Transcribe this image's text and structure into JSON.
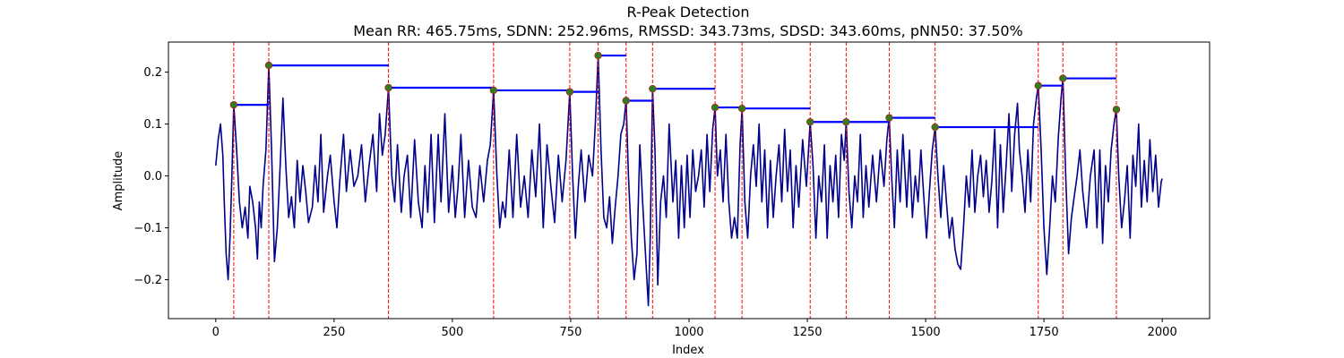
{
  "chart_data": {
    "type": "line",
    "title": "R-Peak Detection",
    "subtitle": "Mean RR: 465.75ms, SDNN: 252.96ms, RMSSD: 343.73ms, SDSD: 343.60ms, pNN50: 37.50%",
    "xlabel": "Index",
    "ylabel": "Amplitude",
    "xlim": [
      -100,
      2100
    ],
    "ylim": [
      -0.275,
      0.258
    ],
    "xticks": [
      0,
      250,
      500,
      750,
      1000,
      1250,
      1500,
      1750,
      2000
    ],
    "xtick_labels": [
      "0",
      "250",
      "500",
      "750",
      "1000",
      "1250",
      "1500",
      "1750",
      "2000"
    ],
    "yticks": [
      -0.2,
      -0.1,
      0.0,
      0.1,
      0.2
    ],
    "ytick_labels": [
      "−0.2",
      "−0.1",
      "0.0",
      "0.1",
      "0.2"
    ],
    "grid": false,
    "signal": {
      "color": "#00008b",
      "points": [
        [
          0,
          0.02
        ],
        [
          5,
          0.07
        ],
        [
          10,
          0.1
        ],
        [
          15,
          0.04
        ],
        [
          18,
          -0.05
        ],
        [
          22,
          -0.15
        ],
        [
          26,
          -0.2
        ],
        [
          30,
          -0.12
        ],
        [
          34,
          0.0
        ],
        [
          38,
          0.137
        ],
        [
          44,
          0.05
        ],
        [
          50,
          -0.05
        ],
        [
          56,
          -0.1
        ],
        [
          62,
          -0.06
        ],
        [
          68,
          -0.12
        ],
        [
          72,
          -0.02
        ],
        [
          78,
          -0.05
        ],
        [
          84,
          -0.1
        ],
        [
          88,
          -0.16
        ],
        [
          92,
          -0.05
        ],
        [
          96,
          -0.1
        ],
        [
          100,
          -0.02
        ],
        [
          106,
          0.05
        ],
        [
          112,
          0.213
        ],
        [
          118,
          0.05
        ],
        [
          124,
          -0.165
        ],
        [
          130,
          -0.1
        ],
        [
          136,
          0.02
        ],
        [
          142,
          0.15
        ],
        [
          148,
          0.02
        ],
        [
          154,
          -0.08
        ],
        [
          160,
          -0.04
        ],
        [
          166,
          -0.1
        ],
        [
          172,
          0.03
        ],
        [
          178,
          -0.05
        ],
        [
          184,
          0.02
        ],
        [
          190,
          -0.03
        ],
        [
          196,
          -0.09
        ],
        [
          204,
          -0.06
        ],
        [
          210,
          0.02
        ],
        [
          216,
          -0.05
        ],
        [
          222,
          0.08
        ],
        [
          228,
          -0.07
        ],
        [
          236,
          0.0
        ],
        [
          242,
          0.04
        ],
        [
          250,
          -0.05
        ],
        [
          256,
          -0.1
        ],
        [
          262,
          -0.01
        ],
        [
          270,
          0.08
        ],
        [
          276,
          -0.03
        ],
        [
          284,
          0.05
        ],
        [
          292,
          -0.02
        ],
        [
          300,
          0.0
        ],
        [
          308,
          0.06
        ],
        [
          316,
          -0.05
        ],
        [
          324,
          0.02
        ],
        [
          332,
          0.08
        ],
        [
          340,
          -0.03
        ],
        [
          346,
          0.12
        ],
        [
          352,
          0.04
        ],
        [
          358,
          0.08
        ],
        [
          365,
          0.17
        ],
        [
          372,
          0.0
        ],
        [
          378,
          -0.05
        ],
        [
          384,
          0.06
        ],
        [
          392,
          -0.07
        ],
        [
          398,
          0.0
        ],
        [
          405,
          0.04
        ],
        [
          412,
          -0.08
        ],
        [
          420,
          0.07
        ],
        [
          428,
          -0.05
        ],
        [
          436,
          -0.1
        ],
        [
          442,
          0.02
        ],
        [
          448,
          -0.07
        ],
        [
          455,
          0.08
        ],
        [
          462,
          -0.09
        ],
        [
          470,
          0.08
        ],
        [
          476,
          -0.05
        ],
        [
          484,
          0.12
        ],
        [
          492,
          -0.07
        ],
        [
          500,
          0.02
        ],
        [
          506,
          -0.08
        ],
        [
          512,
          -0.02
        ],
        [
          518,
          0.08
        ],
        [
          526,
          -0.08
        ],
        [
          534,
          0.03
        ],
        [
          542,
          -0.06
        ],
        [
          550,
          -0.08
        ],
        [
          558,
          0.02
        ],
        [
          566,
          -0.05
        ],
        [
          574,
          0.03
        ],
        [
          580,
          0.06
        ],
        [
          587,
          0.165
        ],
        [
          594,
          0.0
        ],
        [
          600,
          -0.1
        ],
        [
          606,
          -0.05
        ],
        [
          612,
          -0.08
        ],
        [
          620,
          0.05
        ],
        [
          628,
          -0.08
        ],
        [
          636,
          0.08
        ],
        [
          644,
          -0.06
        ],
        [
          652,
          0.0
        ],
        [
          660,
          -0.08
        ],
        [
          668,
          0.05
        ],
        [
          676,
          -0.04
        ],
        [
          684,
          0.1
        ],
        [
          692,
          -0.1
        ],
        [
          700,
          0.06
        ],
        [
          708,
          -0.02
        ],
        [
          716,
          -0.09
        ],
        [
          724,
          0.04
        ],
        [
          732,
          -0.05
        ],
        [
          740,
          0.03
        ],
        [
          748,
          0.162
        ],
        [
          754,
          0.0
        ],
        [
          760,
          -0.12
        ],
        [
          766,
          -0.02
        ],
        [
          772,
          0.05
        ],
        [
          780,
          -0.05
        ],
        [
          788,
          0.04
        ],
        [
          796,
          0.0
        ],
        [
          802,
          0.1
        ],
        [
          808,
          0.232
        ],
        [
          814,
          0.05
        ],
        [
          820,
          -0.08
        ],
        [
          826,
          -0.1
        ],
        [
          832,
          -0.04
        ],
        [
          838,
          -0.13
        ],
        [
          844,
          -0.06
        ],
        [
          850,
          0.0
        ],
        [
          856,
          0.08
        ],
        [
          862,
          0.1
        ],
        [
          867,
          0.145
        ],
        [
          872,
          0.0
        ],
        [
          878,
          -0.12
        ],
        [
          884,
          -0.2
        ],
        [
          890,
          -0.15
        ],
        [
          896,
          0.06
        ],
        [
          902,
          -0.05
        ],
        [
          908,
          -0.15
        ],
        [
          914,
          -0.25
        ],
        [
          918,
          -0.12
        ],
        [
          923,
          0.168
        ],
        [
          928,
          0.05
        ],
        [
          934,
          -0.21
        ],
        [
          940,
          -0.05
        ],
        [
          946,
          0.0
        ],
        [
          952,
          -0.08
        ],
        [
          958,
          0.1
        ],
        [
          966,
          -0.05
        ],
        [
          972,
          0.03
        ],
        [
          978,
          -0.12
        ],
        [
          984,
          0.02
        ],
        [
          990,
          -0.1
        ],
        [
          996,
          0.04
        ],
        [
          1002,
          -0.08
        ],
        [
          1008,
          0.05
        ],
        [
          1014,
          -0.03
        ],
        [
          1020,
          0.0
        ],
        [
          1026,
          0.05
        ],
        [
          1032,
          -0.06
        ],
        [
          1038,
          0.08
        ],
        [
          1044,
          -0.03
        ],
        [
          1050,
          0.09
        ],
        [
          1055,
          0.132
        ],
        [
          1060,
          0.0
        ],
        [
          1066,
          0.05
        ],
        [
          1072,
          -0.05
        ],
        [
          1078,
          0.08
        ],
        [
          1084,
          -0.05
        ],
        [
          1090,
          -0.12
        ],
        [
          1096,
          -0.08
        ],
        [
          1102,
          -0.12
        ],
        [
          1108,
          0.06
        ],
        [
          1112,
          0.13
        ],
        [
          1118,
          -0.05
        ],
        [
          1124,
          -0.12
        ],
        [
          1130,
          0.0
        ],
        [
          1136,
          0.06
        ],
        [
          1142,
          -0.02
        ],
        [
          1148,
          0.1
        ],
        [
          1154,
          -0.05
        ],
        [
          1160,
          0.05
        ],
        [
          1166,
          -0.1
        ],
        [
          1172,
          0.03
        ],
        [
          1178,
          -0.08
        ],
        [
          1184,
          0.0
        ],
        [
          1190,
          0.06
        ],
        [
          1196,
          -0.05
        ],
        [
          1202,
          0.09
        ],
        [
          1208,
          -0.03
        ],
        [
          1214,
          0.05
        ],
        [
          1220,
          -0.1
        ],
        [
          1226,
          0.02
        ],
        [
          1232,
          -0.06
        ],
        [
          1240,
          0.07
        ],
        [
          1248,
          -0.02
        ],
        [
          1256,
          0.104
        ],
        [
          1262,
          0.02
        ],
        [
          1268,
          -0.12
        ],
        [
          1274,
          0.0
        ],
        [
          1280,
          -0.05
        ],
        [
          1286,
          0.06
        ],
        [
          1292,
          -0.12
        ],
        [
          1298,
          0.02
        ],
        [
          1304,
          -0.05
        ],
        [
          1310,
          0.04
        ],
        [
          1316,
          -0.08
        ],
        [
          1322,
          0.08
        ],
        [
          1328,
          0.03
        ],
        [
          1332,
          0.104
        ],
        [
          1338,
          -0.03
        ],
        [
          1344,
          -0.1
        ],
        [
          1350,
          0.0
        ],
        [
          1356,
          -0.05
        ],
        [
          1362,
          0.08
        ],
        [
          1368,
          -0.08
        ],
        [
          1374,
          0.02
        ],
        [
          1380,
          -0.06
        ],
        [
          1388,
          0.04
        ],
        [
          1396,
          -0.05
        ],
        [
          1404,
          0.05
        ],
        [
          1412,
          -0.02
        ],
        [
          1418,
          0.07
        ],
        [
          1423,
          0.112
        ],
        [
          1428,
          0.0
        ],
        [
          1434,
          -0.1
        ],
        [
          1440,
          0.05
        ],
        [
          1446,
          -0.05
        ],
        [
          1452,
          0.08
        ],
        [
          1460,
          -0.06
        ],
        [
          1466,
          0.05
        ],
        [
          1472,
          -0.08
        ],
        [
          1478,
          0.0
        ],
        [
          1484,
          -0.05
        ],
        [
          1490,
          0.05
        ],
        [
          1496,
          -0.04
        ],
        [
          1502,
          -0.12
        ],
        [
          1508,
          -0.03
        ],
        [
          1514,
          0.05
        ],
        [
          1520,
          0.094
        ],
        [
          1526,
          0.0
        ],
        [
          1532,
          -0.08
        ],
        [
          1538,
          0.02
        ],
        [
          1544,
          -0.05
        ],
        [
          1550,
          -0.12
        ],
        [
          1556,
          -0.08
        ],
        [
          1562,
          -0.14
        ],
        [
          1568,
          -0.17
        ],
        [
          1574,
          -0.18
        ],
        [
          1580,
          -0.1
        ],
        [
          1586,
          0.0
        ],
        [
          1592,
          -0.06
        ],
        [
          1598,
          0.05
        ],
        [
          1604,
          -0.07
        ],
        [
          1610,
          0.0
        ],
        [
          1616,
          0.04
        ],
        [
          1622,
          -0.04
        ],
        [
          1628,
          0.03
        ],
        [
          1634,
          -0.07
        ],
        [
          1640,
          -0.01
        ],
        [
          1646,
          0.09
        ],
        [
          1652,
          -0.1
        ],
        [
          1658,
          0.06
        ],
        [
          1664,
          -0.07
        ],
        [
          1670,
          0.02
        ],
        [
          1676,
          0.12
        ],
        [
          1682,
          -0.03
        ],
        [
          1688,
          0.08
        ],
        [
          1694,
          0.14
        ],
        [
          1698,
          0.05
        ],
        [
          1704,
          0.0
        ],
        [
          1710,
          -0.07
        ],
        [
          1716,
          0.05
        ],
        [
          1722,
          -0.05
        ],
        [
          1728,
          0.1
        ],
        [
          1734,
          0.15
        ],
        [
          1738,
          0.174
        ],
        [
          1744,
          0.05
        ],
        [
          1750,
          -0.1
        ],
        [
          1756,
          -0.19
        ],
        [
          1762,
          -0.1
        ],
        [
          1768,
          0.0
        ],
        [
          1774,
          -0.05
        ],
        [
          1780,
          0.07
        ],
        [
          1786,
          0.15
        ],
        [
          1790,
          0.188
        ],
        [
          1796,
          0.0
        ],
        [
          1802,
          -0.15
        ],
        [
          1808,
          -0.08
        ],
        [
          1814,
          -0.04
        ],
        [
          1820,
          0.0
        ],
        [
          1826,
          0.05
        ],
        [
          1832,
          -0.03
        ],
        [
          1840,
          -0.1
        ],
        [
          1848,
          0.0
        ],
        [
          1856,
          0.05
        ],
        [
          1862,
          -0.1
        ],
        [
          1868,
          0.05
        ],
        [
          1874,
          -0.13
        ],
        [
          1880,
          0.02
        ],
        [
          1886,
          -0.05
        ],
        [
          1892,
          0.05
        ],
        [
          1898,
          0.1
        ],
        [
          1903,
          0.128
        ],
        [
          1908,
          0.0
        ],
        [
          1914,
          -0.1
        ],
        [
          1920,
          -0.05
        ],
        [
          1926,
          0.02
        ],
        [
          1932,
          -0.12
        ],
        [
          1938,
          0.04
        ],
        [
          1944,
          -0.02
        ],
        [
          1950,
          0.1
        ],
        [
          1956,
          -0.06
        ],
        [
          1962,
          0.03
        ],
        [
          1968,
          -0.05
        ],
        [
          1974,
          0.07
        ],
        [
          1980,
          -0.03
        ],
        [
          1986,
          0.04
        ],
        [
          1992,
          -0.06
        ],
        [
          1998,
          -0.01
        ],
        [
          2000,
          -0.005
        ]
      ]
    },
    "r_peaks": {
      "marker_color": "#2e7d1f",
      "marker_edge": "#b02020",
      "x": [
        38,
        112,
        365,
        587,
        748,
        808,
        867,
        923,
        1055,
        1112,
        1256,
        1332,
        1423,
        1520,
        1738,
        1790,
        1903
      ],
      "y": [
        0.137,
        0.213,
        0.17,
        0.165,
        0.162,
        0.232,
        0.145,
        0.168,
        0.132,
        0.13,
        0.104,
        0.104,
        0.112,
        0.094,
        0.174,
        0.188,
        0.128
      ]
    },
    "vertical_lines": {
      "color": "#ff0000",
      "style": "dashed"
    },
    "rr_segments": {
      "color": "#0000ff",
      "segments": [
        [
          38,
          112,
          0.137
        ],
        [
          112,
          365,
          0.213
        ],
        [
          365,
          587,
          0.17
        ],
        [
          587,
          748,
          0.165
        ],
        [
          748,
          808,
          0.162
        ],
        [
          808,
          867,
          0.232
        ],
        [
          867,
          923,
          0.145
        ],
        [
          923,
          1055,
          0.168
        ],
        [
          1055,
          1112,
          0.132
        ],
        [
          1112,
          1256,
          0.13
        ],
        [
          1256,
          1332,
          0.104
        ],
        [
          1332,
          1423,
          0.104
        ],
        [
          1423,
          1520,
          0.112
        ],
        [
          1520,
          1738,
          0.094
        ],
        [
          1738,
          1790,
          0.174
        ],
        [
          1790,
          1903,
          0.188
        ]
      ]
    }
  }
}
